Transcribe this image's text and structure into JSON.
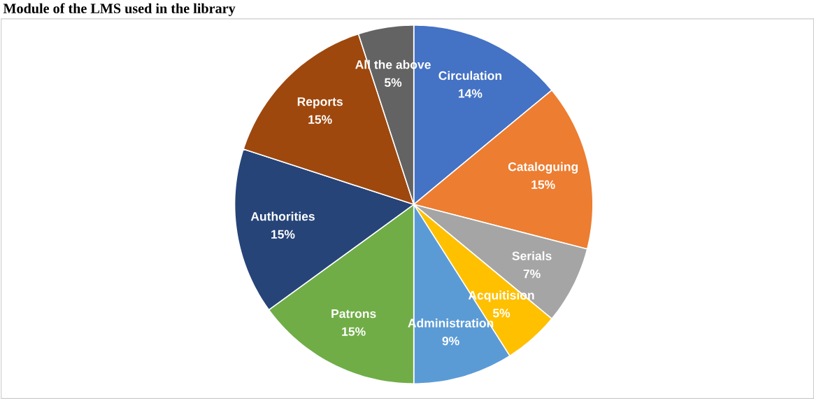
{
  "chart_data": {
    "type": "pie",
    "title": "Module of the LMS used in the library",
    "categories": [
      "Circulation",
      "Cataloguing",
      "Serials",
      "Acquitision",
      "Administration",
      "Patrons",
      "Authorities",
      "Reports",
      "All the above"
    ],
    "values": [
      14,
      15,
      7,
      5,
      9,
      15,
      15,
      15,
      5
    ],
    "colors": [
      "#4472c4",
      "#ed7d31",
      "#a5a5a5",
      "#ffc000",
      "#5b9bd5",
      "#70ad47",
      "#264478",
      "#9e480e",
      "#636363"
    ],
    "value_labels": [
      "14%",
      "15%",
      "7%",
      "5%",
      "9%",
      "15%",
      "15%",
      "15%",
      "5%"
    ]
  }
}
